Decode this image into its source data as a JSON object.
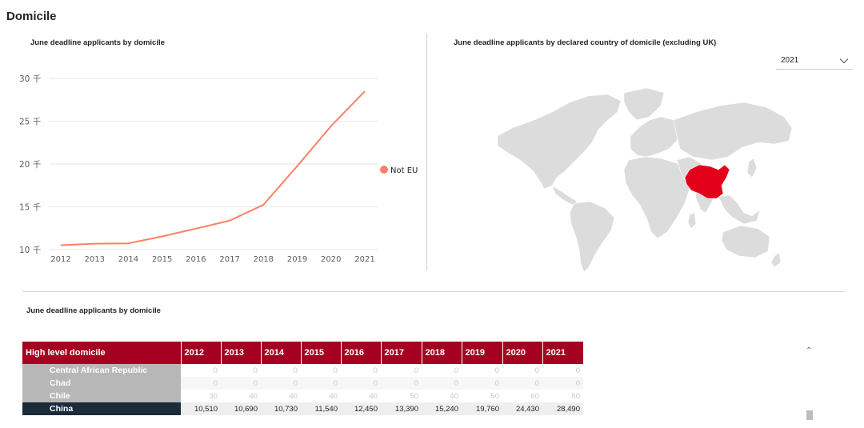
{
  "page": {
    "title": "Domicile"
  },
  "line_chart": {
    "title": "June deadline applicants by domicile"
  },
  "map": {
    "title": "June deadline applicants by declared country of domicile (excluding UK)",
    "highlighted_country": "China",
    "highlight_color": "#e3001b",
    "land_color": "#dcdcdc"
  },
  "slicer": {
    "selected": "2021",
    "icon": "chevron-down-icon"
  },
  "table": {
    "title": "June deadline applicants by domicile",
    "header_color": "#a50021",
    "columns": [
      "High level domicile",
      "2012",
      "2013",
      "2014",
      "2015",
      "2016",
      "2017",
      "2018",
      "2019",
      "2020",
      "2021"
    ],
    "rows": [
      {
        "label": "Central African Republic",
        "values": [
          "0",
          "0",
          "0",
          "0",
          "0",
          "0",
          "0",
          "0",
          "0",
          "0"
        ]
      },
      {
        "label": "Chad",
        "values": [
          "0",
          "0",
          "0",
          "0",
          "0",
          "0",
          "0",
          "0",
          "0",
          "0"
        ]
      },
      {
        "label": "Chile",
        "values": [
          "30",
          "40",
          "40",
          "40",
          "40",
          "50",
          "40",
          "50",
          "60",
          "50"
        ]
      },
      {
        "label": "China",
        "values": [
          "10,510",
          "10,690",
          "10,730",
          "11,540",
          "12,450",
          "13,390",
          "15,240",
          "19,760",
          "24,430",
          "28,490"
        ]
      }
    ]
  },
  "scrollbar": {
    "up_icon": "chevron-up-icon"
  },
  "chart_data": {
    "type": "line",
    "title": "June deadline applicants by domicile",
    "xlabel": "",
    "ylabel": "",
    "x": [
      "2012",
      "2013",
      "2014",
      "2015",
      "2016",
      "2017",
      "2018",
      "2019",
      "2020",
      "2021"
    ],
    "series": [
      {
        "name": "Not EU",
        "color": "#fd8063",
        "values": [
          10510,
          10690,
          10730,
          11540,
          12450,
          13390,
          15240,
          19760,
          24430,
          28490
        ]
      }
    ],
    "ylim": [
      10000,
      30000
    ],
    "yticks": [
      10000,
      15000,
      20000,
      25000,
      30000
    ],
    "ytick_labels": [
      "10 千",
      "15 千",
      "20 千",
      "25 千",
      "30 千"
    ],
    "legend": "right",
    "grid": true
  }
}
